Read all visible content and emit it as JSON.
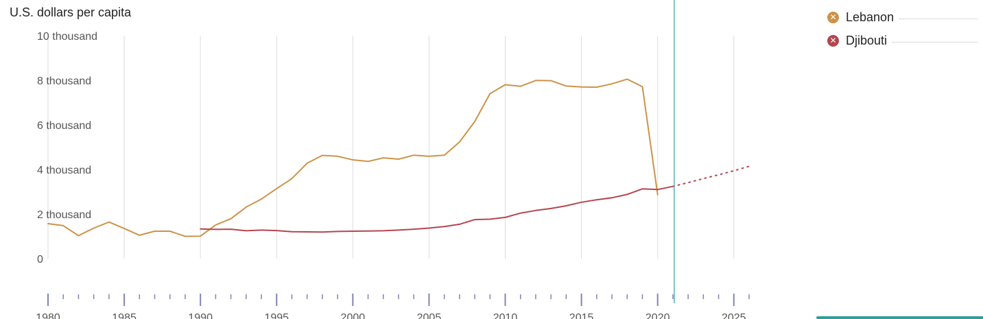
{
  "chart_data": {
    "type": "line",
    "ylabel": "U.S. dollars per capita",
    "ylim": [
      0,
      10000
    ],
    "yticks": [
      0,
      2000,
      4000,
      6000,
      8000,
      10000
    ],
    "ytick_labels": [
      "0",
      "2 thousand",
      "4 thousand",
      "6 thousand",
      "8 thousand",
      "10 thousand"
    ],
    "xlim": [
      1980,
      2026
    ],
    "xticks": [
      1980,
      1985,
      1990,
      1995,
      2000,
      2005,
      2010,
      2015,
      2020,
      2025
    ],
    "xtick_labels": [
      "1980",
      "1985",
      "1990",
      "1995",
      "2000",
      "2005",
      "2010",
      "2015",
      "2020",
      "2025"
    ],
    "grid": true,
    "legend_position": "top-right",
    "cursor_year": 2021,
    "series": [
      {
        "name": "Lebanon",
        "color": "#cc9348",
        "x": [
          1980,
          1981,
          1982,
          1983,
          1984,
          1985,
          1986,
          1987,
          1988,
          1989,
          1990,
          1991,
          1992,
          1993,
          1994,
          1995,
          1996,
          1997,
          1998,
          1999,
          2000,
          2001,
          2002,
          2003,
          2004,
          2005,
          2006,
          2007,
          2008,
          2009,
          2010,
          2011,
          2012,
          2013,
          2014,
          2015,
          2016,
          2017,
          2018,
          2019,
          2020
        ],
        "values": [
          1570,
          1480,
          1030,
          1370,
          1640,
          1350,
          1050,
          1230,
          1230,
          1000,
          1010,
          1510,
          1790,
          2310,
          2670,
          3140,
          3590,
          4280,
          4630,
          4590,
          4430,
          4360,
          4520,
          4460,
          4640,
          4590,
          4640,
          5230,
          6150,
          7400,
          7800,
          7730,
          7990,
          7980,
          7740,
          7700,
          7690,
          7840,
          8050,
          7710,
          2870
        ]
      },
      {
        "name": "Djibouti",
        "color": "#b4454e",
        "x": [
          1990,
          1991,
          1992,
          1993,
          1994,
          1995,
          1996,
          1997,
          1998,
          1999,
          2000,
          2001,
          2002,
          2003,
          2004,
          2005,
          2006,
          2007,
          2008,
          2009,
          2010,
          2011,
          2012,
          2013,
          2014,
          2015,
          2016,
          2017,
          2018,
          2019,
          2020,
          2021
        ],
        "values": [
          1330,
          1310,
          1320,
          1250,
          1280,
          1260,
          1210,
          1200,
          1190,
          1220,
          1230,
          1240,
          1250,
          1280,
          1320,
          1370,
          1440,
          1540,
          1750,
          1770,
          1850,
          2040,
          2160,
          2250,
          2370,
          2530,
          2640,
          2730,
          2880,
          3130,
          3100,
          3240
        ],
        "projection": {
          "x": [
            2021,
            2022,
            2023,
            2024,
            2025,
            2026
          ],
          "values": [
            3240,
            3410,
            3590,
            3760,
            3940,
            4140
          ]
        }
      }
    ]
  },
  "legend": {
    "items": [
      {
        "label": "Lebanon",
        "color": "#cc9348",
        "icon": "close-x-icon"
      },
      {
        "label": "Djibouti",
        "color": "#b4454e",
        "icon": "close-x-icon"
      }
    ]
  },
  "colors": {
    "grid": "#dddddd",
    "axis_ticks": "#8183b3",
    "cursor": "#2d9f9c",
    "tick_label": "#555555",
    "accent_bar": "#2d9f9c"
  }
}
